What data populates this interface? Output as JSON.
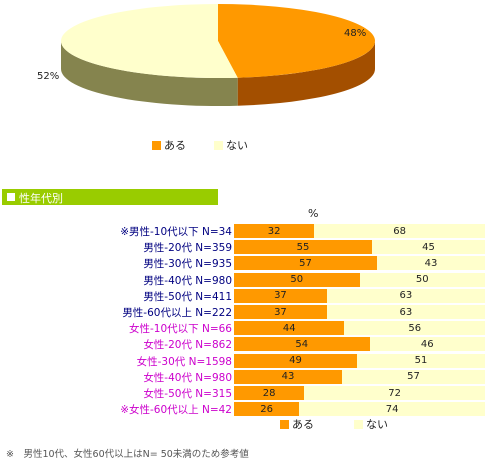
{
  "colors": {
    "yes": "#ff9900",
    "no": "#ffffcc",
    "yes_side": "#a34f00",
    "no_side": "#85844e",
    "header": "#99cc00",
    "male": "#000080",
    "female": "#cc00cc"
  },
  "pie": {
    "legend": [
      {
        "label": "ある"
      },
      {
        "label": "ない"
      }
    ]
  },
  "section": {
    "title": "性年代別",
    "unit": "%"
  },
  "bar_legend": [
    {
      "label": "ある"
    },
    {
      "label": "ない"
    }
  ],
  "footnote": "※　男性10代、女性60代以上はN= 50未満のため参考値",
  "chart_data": [
    {
      "type": "pie",
      "categories": [
        "ある",
        "ない"
      ],
      "values": [
        48,
        52
      ],
      "value_labels": [
        "48%",
        "52%"
      ],
      "style": "3d",
      "legend_position": "bottom"
    },
    {
      "type": "bar",
      "orientation": "horizontal",
      "stacked": true,
      "unit": "%",
      "categories": [
        "※男性-10代以下 N=34",
        "男性-20代 N=359",
        "男性-30代 N=935",
        "男性-40代 N=980",
        "男性-50代 N=411",
        "男性-60代以上 N=222",
        "女性-10代以下 N=66",
        "女性-20代 N=862",
        "女性-30代 N=1598",
        "女性-40代 N=980",
        "女性-50代 N=315",
        "※女性-60代以上 N=42"
      ],
      "series": [
        {
          "name": "ある",
          "values": [
            32,
            55,
            57,
            50,
            37,
            37,
            44,
            54,
            49,
            43,
            28,
            26
          ]
        },
        {
          "name": "ない",
          "values": [
            68,
            45,
            43,
            50,
            63,
            63,
            56,
            46,
            51,
            57,
            72,
            74
          ]
        }
      ],
      "legend_position": "bottom"
    }
  ]
}
